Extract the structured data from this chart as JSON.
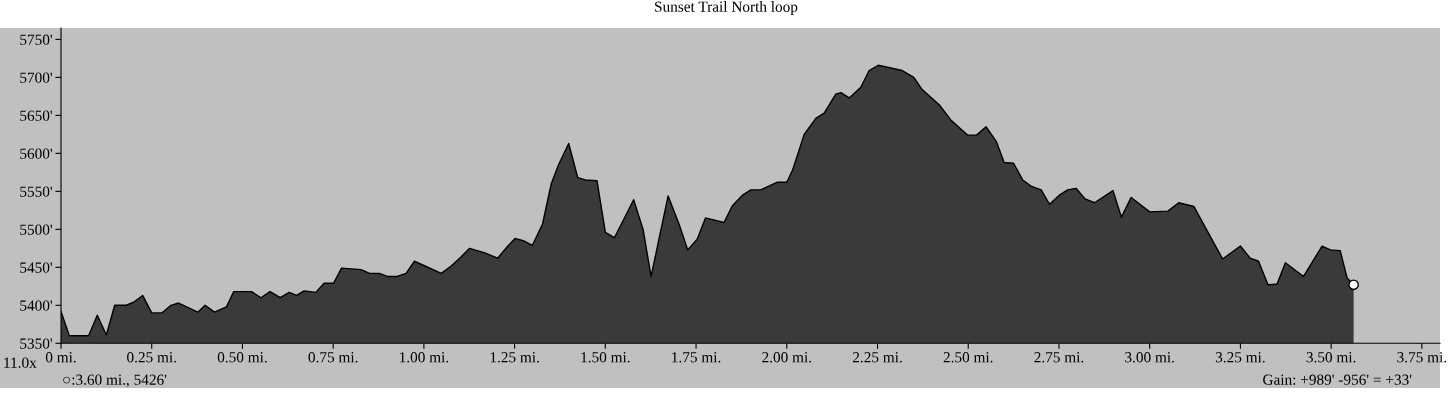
{
  "chart_data": {
    "type": "area",
    "title": "Sunset Trail North loop",
    "annotations": [
      "11.0x",
      "○:3.60 mi., 5426'",
      "Gain: +989' -956' = +33'"
    ],
    "series": [
      {
        "color": "#3a3a3a",
        "x": [
          0,
          0.023,
          0.076,
          0.1,
          0.125,
          0.148,
          0.178,
          0.2,
          0.225,
          0.25,
          0.278,
          0.303,
          0.324,
          0.377,
          0.397,
          0.423,
          0.456,
          0.476,
          0.525,
          0.551,
          0.576,
          0.604,
          0.629,
          0.649,
          0.67,
          0.702,
          0.725,
          0.751,
          0.773,
          0.827,
          0.85,
          0.877,
          0.9,
          0.926,
          0.951,
          0.974,
          1.048,
          1.076,
          1.103,
          1.126,
          1.168,
          1.203,
          1.228,
          1.251,
          1.274,
          1.299,
          1.327,
          1.351,
          1.371,
          1.399,
          1.424,
          1.445,
          1.477,
          1.5,
          1.525,
          1.578,
          1.604,
          1.626,
          1.673,
          1.703,
          1.727,
          1.753,
          1.776,
          1.827,
          1.85,
          1.878,
          1.901,
          1.928,
          1.974,
          2.0,
          2.016,
          2.048,
          2.08,
          2.103,
          2.135,
          2.149,
          2.172,
          2.204,
          2.227,
          2.252,
          2.318,
          2.35,
          2.373,
          2.42,
          2.452,
          2.498,
          2.523,
          2.549,
          2.578,
          2.599,
          2.625,
          2.65,
          2.673,
          2.701,
          2.724,
          2.751,
          2.774,
          2.797,
          2.822,
          2.848,
          2.899,
          2.922,
          2.949,
          3.0,
          3.05,
          3.08,
          3.122,
          3.201,
          3.25,
          3.277,
          3.3,
          3.326,
          3.351,
          3.374,
          3.424,
          3.475,
          3.498,
          3.525,
          3.544,
          3.562
        ],
        "values": [
          5392,
          5360,
          5360,
          5387,
          5361,
          5400,
          5400,
          5404,
          5413,
          5390,
          5390,
          5400,
          5403,
          5391,
          5400,
          5391,
          5398,
          5418,
          5418,
          5410,
          5418,
          5410,
          5417,
          5413,
          5419,
          5417,
          5429,
          5429,
          5449,
          5447,
          5442,
          5442,
          5438,
          5438,
          5442,
          5458,
          5442,
          5452,
          5464,
          5475,
          5469,
          5462,
          5476,
          5488,
          5485,
          5479,
          5507,
          5560,
          5585,
          5613,
          5568,
          5565,
          5564,
          5496,
          5489,
          5539,
          5500,
          5438,
          5544,
          5507,
          5473,
          5487,
          5515,
          5509,
          5531,
          5545,
          5552,
          5552,
          5562,
          5562,
          5578,
          5625,
          5646,
          5653,
          5678,
          5680,
          5673,
          5687,
          5709,
          5716,
          5709,
          5700,
          5684,
          5664,
          5644,
          5624,
          5624,
          5635,
          5615,
          5588,
          5587,
          5565,
          5557,
          5552,
          5533,
          5545,
          5552,
          5554,
          5540,
          5535,
          5551,
          5516,
          5542,
          5523,
          5524,
          5535,
          5530,
          5461,
          5478,
          5462,
          5458,
          5427,
          5428,
          5456,
          5438,
          5478,
          5473,
          5472,
          5436,
          5427
        ]
      },
      {
        "type": "scatter",
        "color": "#ffffff",
        "marker": "circle",
        "x": [
          3.562
        ],
        "values": [
          5427
        ]
      }
    ],
    "xlim": [
      0,
      3.8
    ],
    "xticks": [
      {
        "value": 0,
        "label": "0 mi."
      },
      {
        "value": 0.25,
        "label": "0.25 mi."
      },
      {
        "value": 0.5,
        "label": "0.50 mi."
      },
      {
        "value": 0.75,
        "label": "0.75 mi."
      },
      {
        "value": 1,
        "label": "1.00 mi."
      },
      {
        "value": 1.25,
        "label": "1.25 mi."
      },
      {
        "value": 1.5,
        "label": "1.50 mi."
      },
      {
        "value": 1.75,
        "label": "1.75 mi."
      },
      {
        "value": 2,
        "label": "2.00 mi."
      },
      {
        "value": 2.25,
        "label": "2.25 mi."
      },
      {
        "value": 2.5,
        "label": "2.50 mi."
      },
      {
        "value": 2.75,
        "label": "2.75 mi."
      },
      {
        "value": 3,
        "label": "3.00 mi."
      },
      {
        "value": 3.25,
        "label": "3.25 mi."
      },
      {
        "value": 3.5,
        "label": "3.50 mi."
      },
      {
        "value": 3.75,
        "label": "3.75 mi."
      }
    ],
    "ylim": [
      5350,
      5765
    ],
    "yticks": [
      {
        "value": 5350,
        "label": "5350'"
      },
      {
        "value": 5400,
        "label": "5400'"
      },
      {
        "value": 5450,
        "label": "5450'"
      },
      {
        "value": 5500,
        "label": "5500'"
      },
      {
        "value": 5550,
        "label": "5550'"
      },
      {
        "value": 5600,
        "label": "5600'"
      },
      {
        "value": 5650,
        "label": "5650'"
      },
      {
        "value": 5700,
        "label": "5700'"
      },
      {
        "value": 5750,
        "label": "5750'"
      }
    ],
    "grid": false,
    "legend": false
  }
}
